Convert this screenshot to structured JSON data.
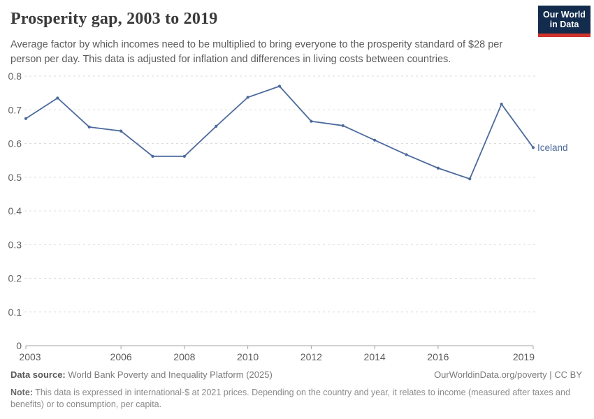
{
  "header": {
    "title": "Prosperity gap, 2003 to 2019",
    "subtitle": "Average factor by which incomes need to be multiplied to bring everyone to the prosperity standard of $28 per person per day. This data is adjusted for inflation and differences in living costs between countries.",
    "logo": {
      "line1": "Our World",
      "line2": "in Data",
      "bg_color": "#132c4d",
      "accent_color": "#d0342c"
    }
  },
  "chart_data": {
    "type": "line",
    "title": "Prosperity gap, 2003 to 2019",
    "x": [
      2003,
      2004,
      2005,
      2006,
      2007,
      2008,
      2009,
      2010,
      2011,
      2012,
      2013,
      2014,
      2015,
      2016,
      2017,
      2018,
      2019
    ],
    "series": [
      {
        "name": "Iceland",
        "color": "#4c6a9c",
        "values": [
          0.674,
          0.735,
          0.649,
          0.637,
          0.562,
          0.562,
          0.651,
          0.737,
          0.77,
          0.666,
          0.653,
          0.61,
          0.567,
          0.527,
          0.495,
          0.717,
          0.588
        ]
      }
    ],
    "xlim": [
      2003,
      2019
    ],
    "ylim": [
      0,
      0.8
    ],
    "x_ticks": [
      2003,
      2006,
      2008,
      2010,
      2012,
      2014,
      2016,
      2019
    ],
    "y_ticks": [
      0,
      0.1,
      0.2,
      0.3,
      0.4,
      0.5,
      0.6,
      0.7,
      0.8
    ],
    "grid": "horizontal-dashed",
    "grid_color": "#dcdcdc",
    "axis_color": "#a3a3a3",
    "tick_label_color": "#616161",
    "legend": "inline-end-label"
  },
  "footer": {
    "datasource_label": "Data source:",
    "datasource_value": " World Bank Poverty and Inequality Platform (2025)",
    "rights": "OurWorldinData.org/poverty | CC BY",
    "note_label": "Note:",
    "note_value": " This data is expressed in international-$ at 2021 prices. Depending on the country and year, it relates to income (measured after taxes and benefits) or to consumption, per capita."
  }
}
